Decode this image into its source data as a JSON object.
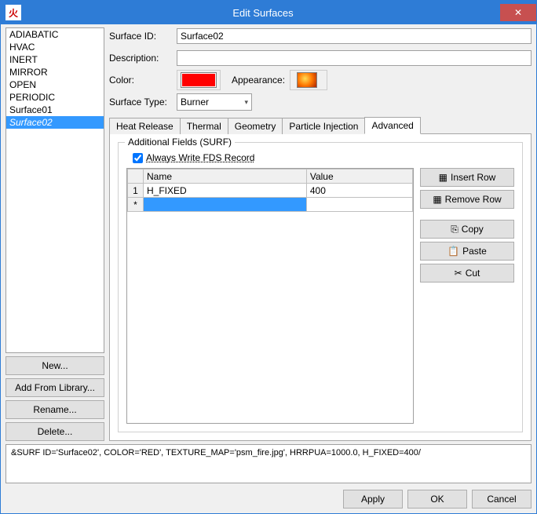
{
  "window": {
    "title": "Edit Surfaces",
    "icon_glyph": "火",
    "close_glyph": "✕"
  },
  "sidebar": {
    "items": [
      "ADIABATIC",
      "HVAC",
      "INERT",
      "MIRROR",
      "OPEN",
      "PERIODIC",
      "Surface01",
      "Surface02"
    ],
    "selected_index": 7,
    "buttons": {
      "new": "New...",
      "add_lib": "Add From Library...",
      "rename": "Rename...",
      "delete": "Delete..."
    }
  },
  "form": {
    "surface_id_label": "Surface ID:",
    "surface_id_value": "Surface02",
    "description_label": "Description:",
    "description_value": "",
    "color_label": "Color:",
    "color_value": "#ff0000",
    "appearance_label": "Appearance:",
    "surface_type_label": "Surface Type:",
    "surface_type_value": "Burner"
  },
  "tabs": {
    "items": [
      "Heat Release",
      "Thermal",
      "Geometry",
      "Particle Injection",
      "Advanced"
    ],
    "active_index": 4
  },
  "advanced": {
    "group_title": "Additional Fields (SURF)",
    "checkbox_label": "Always Write FDS Record",
    "checkbox_checked": true,
    "grid": {
      "cols": [
        "Name",
        "Value"
      ],
      "rows": [
        {
          "idx": "1",
          "name": "H_FIXED",
          "value": "400"
        }
      ],
      "newrow_marker": "*"
    },
    "buttons": {
      "insert": "Insert Row",
      "remove": "Remove Row",
      "copy": "Copy",
      "paste": "Paste",
      "cut": "Cut"
    }
  },
  "code_preview": "&SURF ID='Surface02', COLOR='RED', TEXTURE_MAP='psm_fire.jpg', HRRPUA=1000.0, H_FIXED=400/",
  "footer": {
    "apply": "Apply",
    "ok": "OK",
    "cancel": "Cancel"
  },
  "icons": {
    "insert": "▦",
    "remove": "▦",
    "copy": "⎘",
    "paste": "📋",
    "cut": "✂"
  }
}
